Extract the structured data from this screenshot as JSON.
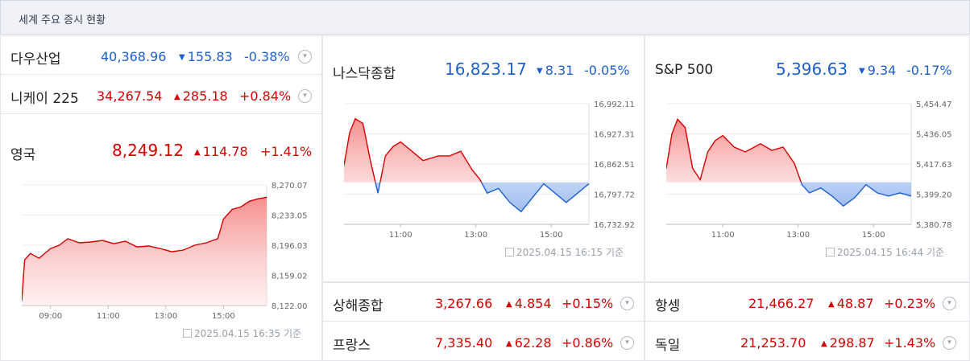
{
  "header": {
    "title": "세계 주요 증시 현황"
  },
  "stamp_suffix": "기준",
  "colors": {
    "up": "#d60000",
    "down": "#1d5fd1"
  },
  "rows": {
    "dow": {
      "name": "다우산업",
      "price": "40,368.96",
      "change": "155.83",
      "pct": "-0.38%",
      "dir": "down"
    },
    "nikkei": {
      "name": "니케이 225",
      "price": "34,267.54",
      "change": "285.18",
      "pct": "+0.84%",
      "dir": "up"
    },
    "shanghai": {
      "name": "상해종합",
      "price": "3,267.66",
      "change": "4.854",
      "pct": "+0.15%",
      "dir": "up"
    },
    "hangseng": {
      "name": "항셍",
      "price": "21,466.27",
      "change": "48.87",
      "pct": "+0.23%",
      "dir": "up"
    },
    "france": {
      "name": "프랑스",
      "price": "7,335.40",
      "change": "62.28",
      "pct": "+0.86%",
      "dir": "up"
    },
    "germany": {
      "name": "독일",
      "price": "21,253.70",
      "change": "298.87",
      "pct": "+1.43%",
      "dir": "up"
    }
  },
  "featured": {
    "uk": {
      "name": "영국",
      "price": "8,249.12",
      "change": "114.78",
      "pct": "+1.41%",
      "dir": "up",
      "stamp": "2025.04.15 16:35"
    },
    "nasdaq": {
      "name": "나스닥종합",
      "price": "16,823.17",
      "change": "8.31",
      "pct": "-0.05%",
      "dir": "down",
      "stamp": "2025.04.15 16:15"
    },
    "sp500": {
      "name": "S&P 500",
      "price": "5,396.63",
      "change": "9.34",
      "pct": "-0.17%",
      "dir": "down",
      "stamp": "2025.04.15 16:44"
    }
  },
  "chart_data": [
    {
      "type": "area",
      "name": "영국",
      "ylim": [
        8122.0,
        8270.07
      ],
      "y_ticks": [
        "8,270.07",
        "8,233.05",
        "8,196.03",
        "8,159.02",
        "8,122.00"
      ],
      "x_ticks": [
        "09:00",
        "11:00",
        "13:00",
        "15:00"
      ],
      "x_tick_hours": [
        9,
        11,
        13,
        15
      ],
      "x_range_hours": [
        8.0,
        16.5
      ],
      "x_hours": [
        8.0,
        8.1,
        8.3,
        8.6,
        9.0,
        9.3,
        9.6,
        10.0,
        10.4,
        10.8,
        11.2,
        11.6,
        12.0,
        12.4,
        12.8,
        13.2,
        13.6,
        14.0,
        14.4,
        14.8,
        15.0,
        15.3,
        15.6,
        15.9,
        16.2,
        16.5
      ],
      "values": [
        8128,
        8178,
        8186,
        8180,
        8192,
        8196,
        8204,
        8199,
        8200,
        8202,
        8198,
        8201,
        8194,
        8195,
        8192,
        8188,
        8190,
        8196,
        8199,
        8204,
        8228,
        8240,
        8243,
        8250,
        8253,
        8255
      ],
      "baseline": 8122.0
    },
    {
      "type": "area",
      "name": "나스닥종합",
      "ylim": [
        16732.92,
        16992.11
      ],
      "y_ticks": [
        "16,992.11",
        "16,927.31",
        "16,862.51",
        "16,797.72",
        "16,732.92"
      ],
      "x_ticks": [
        "11:00",
        "13:00",
        "15:00"
      ],
      "x_tick_hours": [
        11,
        13,
        15
      ],
      "x_range_hours": [
        9.5,
        16.0
      ],
      "x_hours": [
        9.5,
        9.65,
        9.8,
        10.0,
        10.2,
        10.4,
        10.6,
        10.8,
        11.0,
        11.3,
        11.6,
        12.0,
        12.3,
        12.6,
        12.9,
        13.1,
        13.3,
        13.6,
        13.9,
        14.2,
        14.5,
        14.8,
        15.1,
        15.4,
        15.7,
        16.0
      ],
      "values": [
        16860,
        16930,
        16960,
        16950,
        16870,
        16800,
        16880,
        16900,
        16910,
        16890,
        16870,
        16880,
        16880,
        16890,
        16850,
        16830,
        16800,
        16810,
        16780,
        16760,
        16790,
        16820,
        16800,
        16780,
        16800,
        16820
      ],
      "baseline": 16823.17
    },
    {
      "type": "area",
      "name": "S&P 500",
      "ylim": [
        5380.78,
        5454.47
      ],
      "y_ticks": [
        "5,454.47",
        "5,436.05",
        "5,417.63",
        "5,399.20",
        "5,380.78"
      ],
      "x_ticks": [
        "11:00",
        "13:00",
        "15:00"
      ],
      "x_tick_hours": [
        11,
        13,
        15
      ],
      "x_range_hours": [
        9.5,
        16.0
      ],
      "x_hours": [
        9.5,
        9.65,
        9.8,
        10.0,
        10.2,
        10.4,
        10.6,
        10.8,
        11.0,
        11.3,
        11.6,
        12.0,
        12.3,
        12.6,
        12.9,
        13.1,
        13.3,
        13.6,
        13.9,
        14.2,
        14.5,
        14.8,
        15.1,
        15.4,
        15.7,
        16.0
      ],
      "values": [
        5415,
        5436,
        5445,
        5440,
        5415,
        5408,
        5425,
        5432,
        5435,
        5428,
        5425,
        5430,
        5426,
        5428,
        5418,
        5405,
        5400,
        5403,
        5398,
        5392,
        5397,
        5405,
        5400,
        5398,
        5400,
        5398
      ],
      "baseline": 5406.5
    }
  ]
}
